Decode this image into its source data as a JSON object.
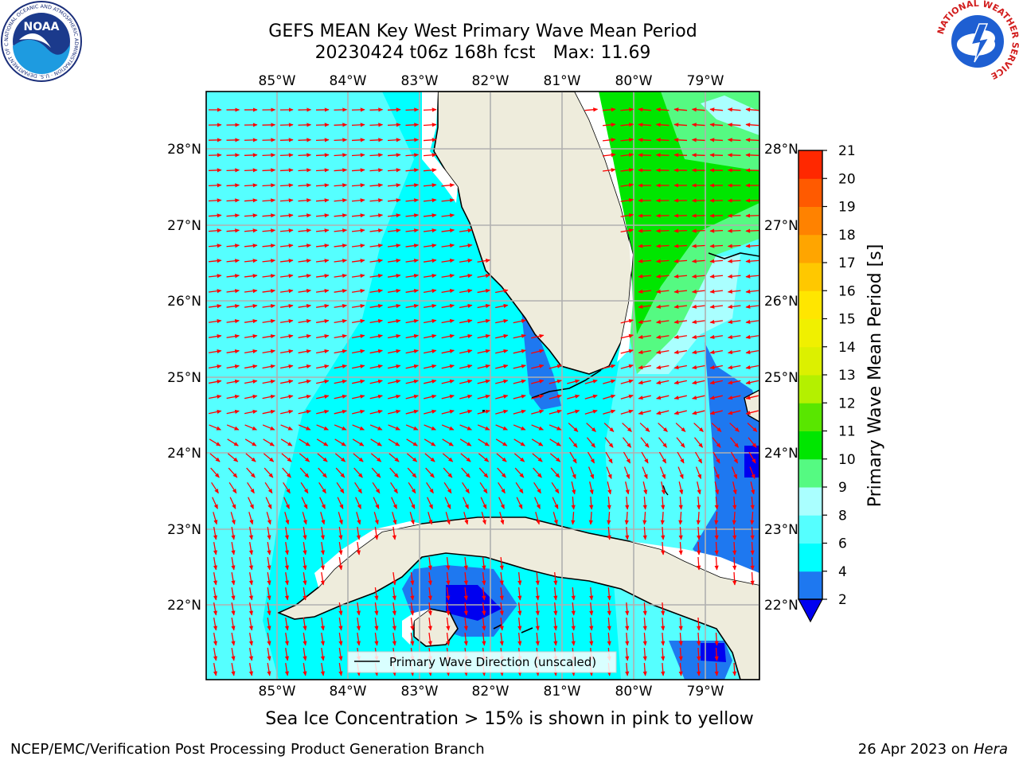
{
  "title": {
    "line1": "GEFS MEAN Key West Primary Wave Mean Period",
    "run": "20230424 t06z 168h fcst",
    "max": "Max: 11.69"
  },
  "logos": {
    "left": {
      "name": "noaa-logo",
      "text": "NOAA",
      "ring_text": "NATIONAL OCEANIC AND ATMOSPHERIC ADMINISTRATION · U.S. DEPARTMENT OF COMMERCE"
    },
    "right": {
      "name": "nws-logo",
      "ring_text": "NATIONAL WEATHER SERVICE"
    }
  },
  "map": {
    "lon_ticks": [
      "85°W",
      "84°W",
      "83°W",
      "82°W",
      "81°W",
      "80°W",
      "79°W"
    ],
    "lat_ticks": [
      "28°N",
      "27°N",
      "26°N",
      "25°N",
      "24°N",
      "23°N",
      "22°N"
    ],
    "legend": "Primary Wave Direction (unscaled)",
    "arrow_color": "#ff0000",
    "land_color": "#eeecdc",
    "grid_color": "#b0b0b0"
  },
  "colorbar": {
    "label": "Primary Wave Mean Period [s]",
    "ticks": [
      "2",
      "4",
      "6",
      "8",
      "9",
      "10",
      "11",
      "12",
      "13",
      "14",
      "15",
      "16",
      "17",
      "18",
      "19",
      "20",
      "21"
    ],
    "colors": [
      "#1e78f0",
      "#00ffff",
      "#55ffff",
      "#aaffff",
      "#55fa82",
      "#00e600",
      "#59e600",
      "#b4f000",
      "#dcf000",
      "#f0f000",
      "#ffe600",
      "#ffc800",
      "#ffa500",
      "#ff8200",
      "#ff5a00",
      "#ff2800"
    ],
    "under_color": "#0000f0"
  },
  "note": "Sea Ice Concentration > 15% is shown in pink to yellow",
  "footer": {
    "left": "NCEP/EMC/Verification Post Processing Product Generation Branch",
    "date": "26 Apr 2023 on",
    "host": "Hera"
  }
}
